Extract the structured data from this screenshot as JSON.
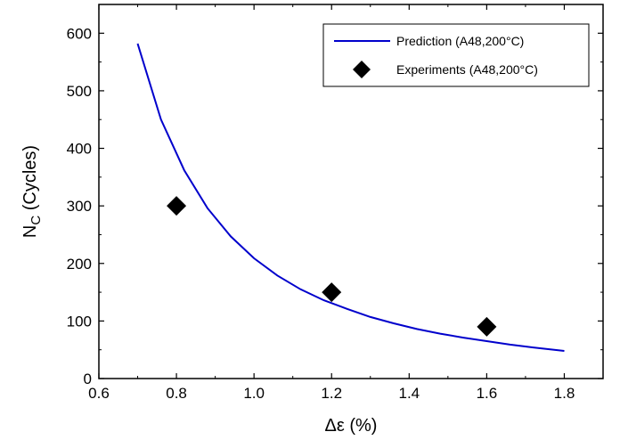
{
  "chart_data": {
    "type": "line",
    "title": "",
    "xlabel": "Δε (%)",
    "ylabel_main": "N",
    "ylabel_sub": "C",
    "ylabel_rest": " (Cycles)",
    "xlim": [
      0.6,
      1.9
    ],
    "ylim": [
      0,
      650
    ],
    "xticks": [
      0.6,
      0.8,
      1.0,
      1.2,
      1.4,
      1.6,
      1.8
    ],
    "xtick_labels": [
      "0.6",
      "0.8",
      "1.0",
      "1.2",
      "1.4",
      "1.6",
      "1.8"
    ],
    "yticks": [
      0,
      100,
      200,
      300,
      400,
      500,
      600
    ],
    "ytick_labels": [
      "0",
      "100",
      "200",
      "300",
      "400",
      "500",
      "600"
    ],
    "grid": false,
    "legend_position": "top-right",
    "series": [
      {
        "name": "Prediction (A48,200°C)",
        "kind": "line",
        "color": "#0000cc",
        "x": [
          0.7,
          0.76,
          0.82,
          0.88,
          0.94,
          1.0,
          1.06,
          1.12,
          1.18,
          1.24,
          1.3,
          1.36,
          1.42,
          1.48,
          1.54,
          1.6,
          1.66,
          1.72,
          1.8
        ],
        "y": [
          582,
          450,
          362,
          296,
          247,
          209,
          179,
          155,
          136,
          121,
          107,
          96,
          86,
          78,
          71,
          65,
          59,
          54,
          48
        ]
      },
      {
        "name": "Experiments (A48,200°C)",
        "kind": "scatter",
        "marker": "diamond",
        "color": "#000000",
        "x": [
          0.8,
          1.2,
          1.6
        ],
        "y": [
          300,
          150,
          90
        ]
      }
    ]
  }
}
